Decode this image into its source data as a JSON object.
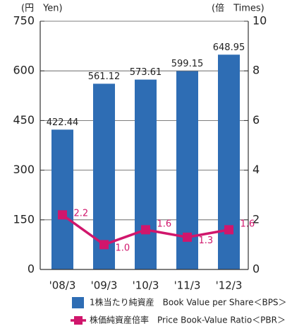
{
  "chart_data": {
    "type": "bar_line",
    "y_axis_label": "(円　Yen)",
    "y2_axis_label": "(倍　Times)",
    "categories": [
      "'08/3",
      "'09/3",
      "'10/3",
      "'11/3",
      "'12/3"
    ],
    "series": [
      {
        "name": "1株当たり純資産　Book Value per Share＜BPS＞",
        "color": "#2e6db4",
        "type": "bar",
        "values": [
          422.44,
          561.12,
          573.61,
          599.15,
          648.95
        ]
      },
      {
        "name": "株価純資産倍率　Price Book-Value Ratio＜PBR＞",
        "color": "#d0166c",
        "type": "line",
        "axis": "y2",
        "values": [
          2.2,
          1.0,
          1.6,
          1.3,
          1.6
        ],
        "value_labels": [
          "2.2",
          "1.0",
          "1.6",
          "1.3",
          "1.6"
        ]
      }
    ],
    "ylim": [
      0,
      750
    ],
    "yticks": [
      0,
      150,
      300,
      450,
      600,
      750
    ],
    "y2lim": [
      0,
      10
    ],
    "y2ticks": [
      0,
      2,
      4,
      6,
      8,
      10
    ],
    "grid": true
  }
}
